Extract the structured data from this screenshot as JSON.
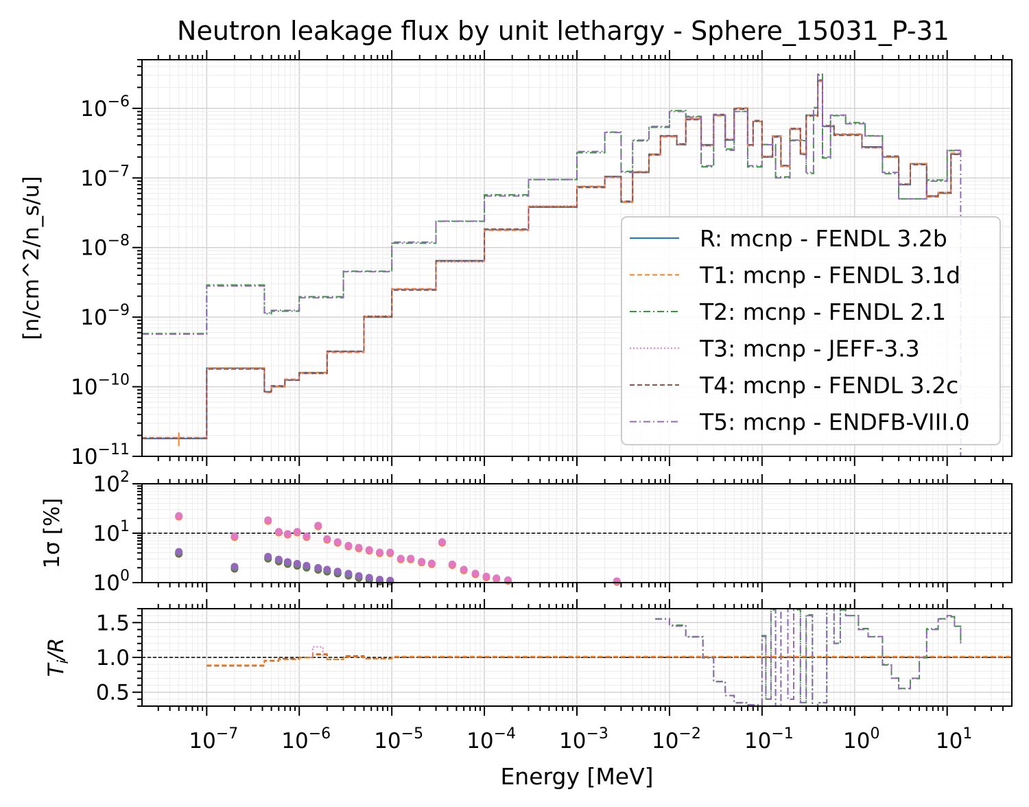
{
  "chart_data": {
    "type": "line",
    "title": "Neutron leakage flux by unit lethargy - Sphere_15031_P-31",
    "xlabel": "Energy [MeV]",
    "x_scale": "log",
    "xlim": [
      2e-08,
      50
    ],
    "x_ticks": [
      {
        "value": 1e-07,
        "base": "10",
        "exp": "−7"
      },
      {
        "value": 1e-06,
        "base": "10",
        "exp": "−6"
      },
      {
        "value": 1e-05,
        "base": "10",
        "exp": "−5"
      },
      {
        "value": 0.0001,
        "base": "10",
        "exp": "−4"
      },
      {
        "value": 0.001,
        "base": "10",
        "exp": "−3"
      },
      {
        "value": 0.01,
        "base": "10",
        "exp": "−2"
      },
      {
        "value": 0.1,
        "base": "10",
        "exp": "−1"
      },
      {
        "value": 1,
        "base": "10",
        "exp": "0"
      },
      {
        "value": 10,
        "base": "10",
        "exp": "1"
      }
    ],
    "grid": true,
    "legend_location": "lower right (top panel)",
    "series": [
      {
        "name": "R: mcnp - FENDL 3.2b",
        "color": "#1f77b4",
        "dash": "solid"
      },
      {
        "name": "T1: mcnp - FENDL 3.1d",
        "color": "#ff7f0e",
        "dash": "dashed"
      },
      {
        "name": "T2: mcnp - FENDL 2.1",
        "color": "#2ca02c",
        "dash": "dashdot"
      },
      {
        "name": "T3: mcnp - JEFF-3.3",
        "color": "#e377c2",
        "dash": "dotted"
      },
      {
        "name": "T4: mcnp - FENDL 3.2c",
        "color": "#8c564b",
        "dash": "dashed"
      },
      {
        "name": "T5: mcnp - ENDFB-VIII.0",
        "color": "#9467bd",
        "dash": "dashdot"
      }
    ],
    "panels": [
      {
        "id": "flux",
        "ylabel": "[n/cm^2/n_s/u]",
        "y_scale": "log",
        "ylim": [
          1e-11,
          5e-06
        ],
        "y_ticks": [
          {
            "value": 1e-11,
            "base": "10",
            "exp": "−11"
          },
          {
            "value": 1e-10,
            "base": "10",
            "exp": "−10"
          },
          {
            "value": 1e-09,
            "base": "10",
            "exp": "−9"
          },
          {
            "value": 1e-08,
            "base": "10",
            "exp": "−8"
          },
          {
            "value": 1e-07,
            "base": "10",
            "exp": "−7"
          },
          {
            "value": 1e-06,
            "base": "10",
            "exp": "−6"
          }
        ],
        "group_low": {
          "members": [
            "R: mcnp - FENDL 3.2b",
            "T1: mcnp - FENDL 3.1d",
            "T3: mcnp - JEFF-3.3",
            "T4: mcnp - FENDL 3.2c"
          ],
          "steps": [
            [
              2e-08,
              1.8e-11
            ],
            [
              1e-07,
              1.85e-10
            ],
            [
              4.2e-07,
              8.5e-11
            ],
            [
              5e-07,
              1e-10
            ],
            [
              7e-07,
              1.25e-10
            ],
            [
              1e-06,
              1.6e-10
            ],
            [
              2e-06,
              3.2e-10
            ],
            [
              5e-06,
              1e-09
            ],
            [
              1e-05,
              2.5e-09
            ],
            [
              3e-05,
              6.5e-09
            ],
            [
              0.0001,
              1.8e-08
            ],
            [
              0.0003,
              3.8e-08
            ],
            [
              0.001,
              7.5e-08
            ],
            [
              0.002,
              1.05e-07
            ],
            [
              0.003,
              4.5e-08
            ],
            [
              0.004,
              1.2e-07
            ],
            [
              0.006,
              2.2e-07
            ],
            [
              0.008,
              4e-07
            ],
            [
              0.012,
              3e-07
            ],
            [
              0.015,
              7e-07
            ],
            [
              0.022,
              3e-07
            ],
            [
              0.03,
              8e-07
            ],
            [
              0.04,
              3.5e-07
            ],
            [
              0.05,
              1e-06
            ],
            [
              0.07,
              3e-07
            ],
            [
              0.08,
              6.5e-07
            ],
            [
              0.1,
              2e-07
            ],
            [
              0.13,
              4e-07
            ],
            [
              0.16,
              1.5e-07
            ],
            [
              0.2,
              5e-07
            ],
            [
              0.26,
              2.2e-07
            ],
            [
              0.3,
              8e-07
            ],
            [
              0.4,
              2.5e-06
            ],
            [
              0.45,
              5.5e-07
            ],
            [
              0.6,
              4.2e-07
            ],
            [
              1.2,
              2.8e-07
            ],
            [
              2,
              2e-07
            ],
            [
              3,
              8e-08
            ],
            [
              4,
              1.6e-07
            ],
            [
              6,
              5.5e-08
            ],
            [
              8,
              6e-08
            ],
            [
              11,
              2.2e-07
            ],
            [
              14,
              2.2e-07
            ]
          ]
        },
        "group_high": {
          "members": [
            "T2: mcnp - FENDL 2.1",
            "T5: mcnp - ENDFB-VIII.0"
          ],
          "steps": [
            [
              2e-08,
              5.7e-10
            ],
            [
              1e-07,
              2.8e-09
            ],
            [
              4.2e-07,
              1.15e-09
            ],
            [
              5e-07,
              1.25e-09
            ],
            [
              1e-06,
              1.9e-09
            ],
            [
              3e-06,
              4.5e-09
            ],
            [
              1e-05,
              1.2e-08
            ],
            [
              3e-05,
              2.4e-08
            ],
            [
              0.0001,
              5.5e-08
            ],
            [
              0.0003,
              9.5e-08
            ],
            [
              0.001,
              2.4e-07
            ],
            [
              0.002,
              4.5e-07
            ],
            [
              0.003,
              1.2e-07
            ],
            [
              0.004,
              3.5e-07
            ],
            [
              0.006,
              5.5e-07
            ],
            [
              0.01,
              9e-07
            ],
            [
              0.015,
              7.5e-07
            ],
            [
              0.022,
              1.5e-07
            ],
            [
              0.03,
              8e-07
            ],
            [
              0.04,
              2.5e-07
            ],
            [
              0.05,
              9e-07
            ],
            [
              0.07,
              1.5e-07
            ],
            [
              0.1,
              3e-07
            ],
            [
              0.14,
              1e-07
            ],
            [
              0.2,
              3.5e-07
            ],
            [
              0.3,
              1.2e-07
            ],
            [
              0.36,
              1e-06
            ],
            [
              0.4,
              3e-06
            ],
            [
              0.45,
              2e-07
            ],
            [
              0.55,
              8e-07
            ],
            [
              0.8,
              6e-07
            ],
            [
              1.3,
              4e-07
            ],
            [
              2,
              1.2e-07
            ],
            [
              3,
              5e-08
            ],
            [
              6,
              9e-08
            ],
            [
              10,
              2.5e-07
            ],
            [
              14,
              2.5e-07
            ]
          ]
        }
      },
      {
        "id": "sigma",
        "ylabel": "1σ [%]",
        "y_scale": "log",
        "ylim": [
          1,
          100
        ],
        "y_ticks": [
          {
            "value": 1,
            "base": "10",
            "exp": "0"
          },
          {
            "value": 10,
            "base": "10",
            "exp": "1"
          },
          {
            "value": 100,
            "base": "10",
            "exp": "2"
          }
        ],
        "reference_line": 10,
        "points_high": [
          [
            5e-08,
            22
          ],
          [
            2e-07,
            8.5
          ],
          [
            4.6e-07,
            18
          ],
          [
            6e-07,
            10.5
          ],
          [
            7.5e-07,
            9.5
          ],
          [
            9.5e-07,
            10.5
          ],
          [
            1.2e-06,
            8.5
          ],
          [
            1.6e-06,
            14
          ],
          [
            2e-06,
            7.5
          ],
          [
            2.6e-06,
            6.5
          ],
          [
            3.4e-06,
            5.5
          ],
          [
            4.4e-06,
            5
          ],
          [
            5.7e-06,
            4.5
          ],
          [
            7.4e-06,
            4
          ],
          [
            9.6e-06,
            4
          ],
          [
            1.25e-05,
            3
          ],
          [
            1.6e-05,
            3
          ],
          [
            2.1e-05,
            2.6
          ],
          [
            2.7e-05,
            2.4
          ],
          [
            3.5e-05,
            6.5
          ],
          [
            4.5e-05,
            2.3
          ],
          [
            6e-05,
            1.8
          ],
          [
            8e-05,
            1.5
          ],
          [
            0.000105,
            1.3
          ],
          [
            0.000135,
            1.2
          ],
          [
            0.00018,
            1.1
          ],
          [
            0.0027,
            1.05
          ]
        ],
        "points_low": [
          [
            5e-08,
            4
          ],
          [
            2e-07,
            2
          ],
          [
            4.6e-07,
            3.2
          ],
          [
            6e-07,
            2.8
          ],
          [
            7.5e-07,
            2.5
          ],
          [
            9.5e-07,
            2.3
          ],
          [
            1.2e-06,
            2.1
          ],
          [
            1.6e-06,
            1.9
          ],
          [
            2e-06,
            1.75
          ],
          [
            2.6e-06,
            1.6
          ],
          [
            3.4e-06,
            1.45
          ],
          [
            4.4e-06,
            1.3
          ],
          [
            5.7e-06,
            1.2
          ],
          [
            7.4e-06,
            1.1
          ],
          [
            9.6e-06,
            1.05
          ]
        ]
      },
      {
        "id": "ratio",
        "ylabel": "Ti/R",
        "y_scale": "linear",
        "ylim": [
          0.3,
          1.7
        ],
        "y_ticks": [
          {
            "value": 0.5,
            "label": "0.5"
          },
          {
            "value": 1.0,
            "label": "1.0"
          },
          {
            "value": 1.5,
            "label": "1.5"
          }
        ],
        "reference_line": 1.0,
        "low_group_ratio": [
          [
            1e-07,
            0.88
          ],
          [
            4.2e-07,
            0.95
          ],
          [
            6e-07,
            0.98
          ],
          [
            1e-06,
            1.0
          ],
          [
            1.4e-06,
            1.04
          ],
          [
            2e-06,
            0.97
          ],
          [
            3e-06,
            1.02
          ],
          [
            5e-06,
            0.98
          ],
          [
            1e-05,
            1.0
          ],
          [
            50,
            1.0
          ]
        ],
        "t3_ratio": [
          [
            1.3e-06,
            1.0
          ],
          [
            1.4e-06,
            1.15
          ],
          [
            1.8e-06,
            1.0
          ]
        ],
        "high_group_ratio": [
          [
            0.007,
            1.55
          ],
          [
            0.01,
            1.45
          ],
          [
            0.015,
            1.3
          ],
          [
            0.023,
            1.0
          ],
          [
            0.03,
            0.65
          ],
          [
            0.04,
            0.45
          ],
          [
            0.05,
            0.35
          ],
          [
            0.07,
            0.32
          ],
          [
            0.1,
            1.3
          ],
          [
            0.11,
            0.4
          ],
          [
            0.125,
            1.7
          ],
          [
            0.14,
            0.3
          ],
          [
            0.16,
            1.7
          ],
          [
            0.19,
            0.4
          ],
          [
            0.22,
            1.7
          ],
          [
            0.26,
            0.35
          ],
          [
            0.3,
            1.6
          ],
          [
            0.35,
            0.3
          ],
          [
            0.4,
            0.35
          ],
          [
            0.5,
            1.7
          ],
          [
            0.6,
            1.2
          ],
          [
            0.7,
            1.7
          ],
          [
            0.8,
            1.6
          ],
          [
            1.1,
            1.4
          ],
          [
            1.4,
            1.3
          ],
          [
            2,
            0.9
          ],
          [
            2.5,
            0.7
          ],
          [
            3,
            0.55
          ],
          [
            4,
            0.7
          ],
          [
            5,
            1.0
          ],
          [
            6,
            1.4
          ],
          [
            8,
            1.55
          ],
          [
            10,
            1.6
          ],
          [
            12,
            1.45
          ],
          [
            14,
            1.2
          ]
        ]
      }
    ]
  }
}
